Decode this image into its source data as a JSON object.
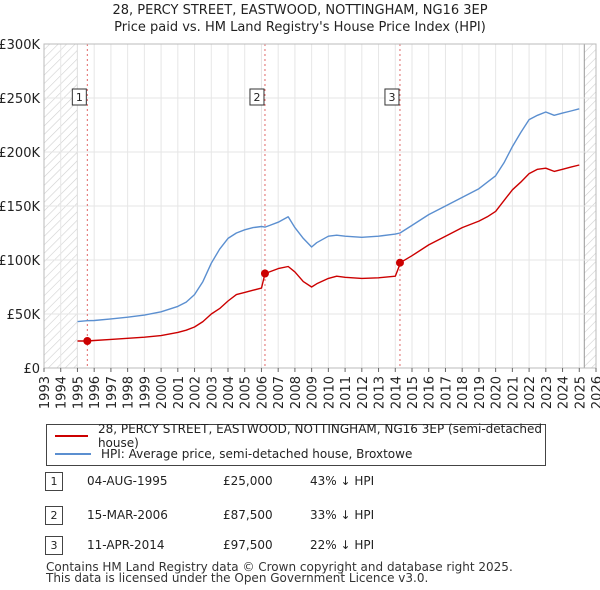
{
  "title": {
    "line1": "28, PERCY STREET, EASTWOOD, NOTTINGHAM, NG16 3EP",
    "line2": "Price paid vs. HM Land Registry's House Price Index (HPI)"
  },
  "colors": {
    "property_line": "#cc0000",
    "hpi_line": "#5b8fd0",
    "marker_line": "#e06666",
    "hatch": "#cfcfcf"
  },
  "legend": {
    "property_label": "28, PERCY STREET, EASTWOOD, NOTTINGHAM, NG16 3EP (semi-detached house)",
    "hpi_label": "HPI: Average price, semi-detached house, Broxtowe"
  },
  "transactions": [
    {
      "num": "1",
      "date": "04-AUG-1995",
      "price": "£25,000",
      "hpi_diff": "43% ↓ HPI"
    },
    {
      "num": "2",
      "date": "15-MAR-2006",
      "price": "£87,500",
      "hpi_diff": "33% ↓ HPI"
    },
    {
      "num": "3",
      "date": "11-APR-2014",
      "price": "£97,500",
      "hpi_diff": "22% ↓ HPI"
    }
  ],
  "footer": {
    "line1": "Contains HM Land Registry data © Crown copyright and database right 2025.",
    "line2": "This data is licensed under the Open Government Licence v3.0."
  },
  "chart_data": {
    "type": "line",
    "title": "Price paid vs. HM Land Registry's House Price Index (HPI)",
    "xlabel": "",
    "ylabel": "",
    "xlim": [
      1993,
      2026
    ],
    "ylim": [
      0,
      300000
    ],
    "y_ticks": [
      {
        "value": 0,
        "label": "£0"
      },
      {
        "value": 50000,
        "label": "£50K"
      },
      {
        "value": 100000,
        "label": "£100K"
      },
      {
        "value": 150000,
        "label": "£150K"
      },
      {
        "value": 200000,
        "label": "£200K"
      },
      {
        "value": 250000,
        "label": "£250K"
      },
      {
        "value": 300000,
        "label": "£300K"
      }
    ],
    "x_ticks": [
      "1993",
      "1994",
      "1995",
      "1996",
      "1997",
      "1998",
      "1999",
      "2000",
      "2001",
      "2002",
      "2003",
      "2004",
      "2005",
      "2006",
      "2007",
      "2008",
      "2009",
      "2010",
      "2011",
      "2012",
      "2013",
      "2014",
      "2015",
      "2016",
      "2017",
      "2018",
      "2019",
      "2020",
      "2021",
      "2022",
      "2023",
      "2024",
      "2025",
      "2026"
    ],
    "hatched_ranges": [
      [
        1993,
        1995.0
      ],
      [
        2025.3,
        2026
      ]
    ],
    "sales": [
      {
        "label": "1",
        "x": 1995.59,
        "y": 25000
      },
      {
        "label": "2",
        "x": 2006.21,
        "y": 87500
      },
      {
        "label": "3",
        "x": 2014.28,
        "y": 97500
      }
    ],
    "series": [
      {
        "name": "28, PERCY STREET, EASTWOOD, NOTTINGHAM, NG16 3EP (semi-detached house)",
        "x": [
          1995.0,
          1995.59,
          1996.0,
          1997.0,
          1998.0,
          1999.0,
          2000.0,
          2001.0,
          2001.5,
          2002.0,
          2002.5,
          2003.0,
          2003.5,
          2004.0,
          2004.5,
          2005.0,
          2005.5,
          2006.0,
          2006.21,
          2006.3,
          2007.0,
          2007.6,
          2008.0,
          2008.5,
          2009.0,
          2009.3,
          2010.0,
          2010.5,
          2011.0,
          2012.0,
          2013.0,
          2014.0,
          2014.25,
          2014.28,
          2014.35,
          2015.0,
          2016.0,
          2017.0,
          2018.0,
          2019.0,
          2019.5,
          2020.0,
          2020.5,
          2021.0,
          2021.5,
          2022.0,
          2022.5,
          2023.0,
          2023.5,
          2024.0,
          2024.5,
          2025.0
        ],
        "values": [
          25000,
          25000,
          25500,
          26500,
          27500,
          28500,
          30000,
          33000,
          35000,
          38000,
          43000,
          50000,
          55000,
          62000,
          68000,
          70000,
          72000,
          74000,
          87500,
          88000,
          92000,
          94000,
          89000,
          80000,
          75000,
          78000,
          83000,
          85000,
          84000,
          83000,
          83500,
          85000,
          95000,
          97500,
          98000,
          104000,
          114000,
          122000,
          130000,
          136000,
          140000,
          145000,
          155000,
          165000,
          172000,
          180000,
          184000,
          185000,
          182000,
          184000,
          186000,
          188000
        ]
      },
      {
        "name": "HPI: Average price, semi-detached house, Broxtowe",
        "x": [
          1995.0,
          1995.59,
          1996.0,
          1997.0,
          1998.0,
          1999.0,
          2000.0,
          2001.0,
          2001.5,
          2002.0,
          2002.5,
          2003.0,
          2003.5,
          2004.0,
          2004.5,
          2005.0,
          2005.5,
          2006.0,
          2006.21,
          2006.5,
          2007.0,
          2007.6,
          2008.0,
          2008.5,
          2009.0,
          2009.3,
          2010.0,
          2010.5,
          2011.0,
          2012.0,
          2013.0,
          2014.0,
          2014.28,
          2015.0,
          2016.0,
          2017.0,
          2018.0,
          2019.0,
          2019.5,
          2020.0,
          2020.5,
          2021.0,
          2021.5,
          2022.0,
          2022.5,
          2023.0,
          2023.5,
          2024.0,
          2024.5,
          2025.0
        ],
        "values": [
          43000,
          43800,
          44000,
          45500,
          47000,
          49000,
          52000,
          57000,
          61000,
          68000,
          80000,
          97000,
          110000,
          120000,
          125000,
          128000,
          130000,
          131000,
          130500,
          132000,
          135000,
          140000,
          130000,
          120000,
          112000,
          116000,
          122000,
          123000,
          122000,
          121000,
          122000,
          124000,
          125000,
          132000,
          142000,
          150000,
          158000,
          166000,
          172000,
          178000,
          190000,
          205000,
          218000,
          230000,
          234000,
          237000,
          234000,
          236000,
          238000,
          240000
        ]
      }
    ]
  }
}
